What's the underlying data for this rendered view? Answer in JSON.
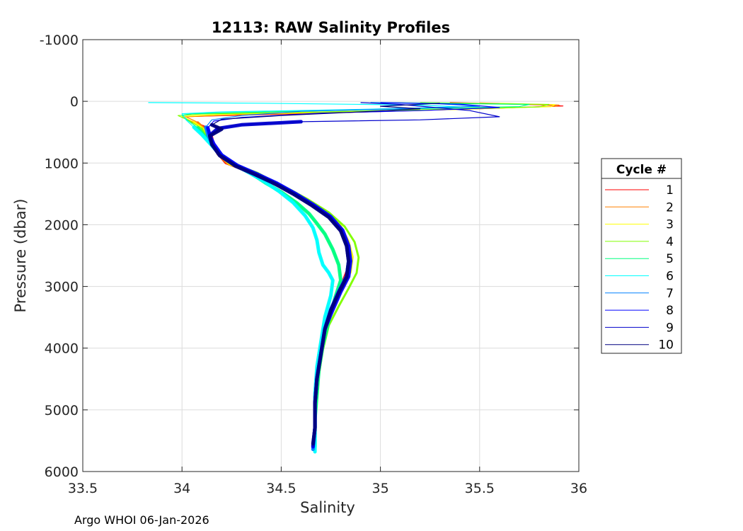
{
  "chart_data": {
    "type": "line",
    "title": "12113: RAW Salinity Profiles",
    "xlabel": "Salinity",
    "ylabel": "Pressure (dbar)",
    "xlim": [
      33.5,
      36
    ],
    "ylim": [
      -1000,
      6000
    ],
    "y_reversed": true,
    "grid": true,
    "xticks": [
      33.5,
      34,
      34.5,
      35,
      35.5,
      36
    ],
    "xtick_labels": [
      "33.5",
      "34",
      "34.5",
      "35",
      "35.5",
      "36"
    ],
    "yticks": [
      -1000,
      0,
      1000,
      2000,
      3000,
      4000,
      5000,
      6000
    ],
    "ytick_labels": [
      "-1000",
      "0",
      "1000",
      "2000",
      "3000",
      "4000",
      "5000",
      "6000"
    ],
    "legend": {
      "title": "Cycle #",
      "placement": "right"
    },
    "series": [
      {
        "name": "1",
        "color": "#ff0000",
        "points": [
          [
            35.35,
            20
          ],
          [
            35.85,
            60
          ],
          [
            35.92,
            75
          ],
          [
            35.5,
            120
          ],
          [
            35.0,
            165
          ],
          [
            34.4,
            215
          ],
          [
            34.0,
            250
          ],
          [
            34.05,
            330
          ],
          [
            34.12,
            420
          ],
          [
            34.15,
            560
          ],
          [
            34.16,
            700
          ],
          [
            34.18,
            850
          ],
          [
            34.22,
            1000
          ],
          [
            34.3,
            1100
          ],
          [
            34.4,
            1250
          ],
          [
            34.5,
            1400
          ],
          [
            34.6,
            1550
          ],
          [
            34.7,
            1750
          ],
          [
            34.78,
            2000
          ],
          [
            34.82,
            2250
          ],
          [
            34.84,
            2500
          ],
          [
            34.83,
            2750
          ],
          [
            34.8,
            3000
          ],
          [
            34.76,
            3300
          ],
          [
            34.73,
            3600
          ],
          [
            34.71,
            4000
          ],
          [
            34.69,
            4400
          ],
          [
            34.68,
            4800
          ],
          [
            34.67,
            5200
          ],
          [
            34.67,
            5550
          ]
        ]
      },
      {
        "name": "2",
        "color": "#ff8000",
        "points": [
          [
            35.5,
            25
          ],
          [
            35.9,
            60
          ],
          [
            35.88,
            80
          ],
          [
            35.45,
            125
          ],
          [
            34.9,
            170
          ],
          [
            34.3,
            215
          ],
          [
            34.02,
            250
          ],
          [
            34.08,
            340
          ],
          [
            34.12,
            460
          ],
          [
            34.14,
            580
          ],
          [
            34.16,
            720
          ],
          [
            34.18,
            860
          ],
          [
            34.23,
            1010
          ],
          [
            34.32,
            1120
          ],
          [
            34.42,
            1260
          ],
          [
            34.52,
            1410
          ],
          [
            34.62,
            1570
          ],
          [
            34.71,
            1770
          ],
          [
            34.79,
            2010
          ],
          [
            34.83,
            2260
          ],
          [
            34.85,
            2510
          ],
          [
            34.84,
            2760
          ],
          [
            34.8,
            3010
          ],
          [
            34.76,
            3300
          ],
          [
            34.73,
            3610
          ],
          [
            34.71,
            4010
          ],
          [
            34.69,
            4410
          ],
          [
            34.68,
            4810
          ],
          [
            34.67,
            5210
          ],
          [
            34.67,
            5560
          ]
        ]
      },
      {
        "name": "3",
        "color": "#ffff00",
        "points": [
          [
            35.6,
            30
          ],
          [
            35.88,
            55
          ],
          [
            35.86,
            85
          ],
          [
            35.4,
            130
          ],
          [
            34.8,
            175
          ],
          [
            34.2,
            210
          ],
          [
            34.0,
            245
          ],
          [
            34.06,
            335
          ],
          [
            34.11,
            450
          ],
          [
            34.13,
            570
          ],
          [
            34.16,
            710
          ],
          [
            34.19,
            870
          ],
          [
            34.24,
            1020
          ],
          [
            34.33,
            1130
          ],
          [
            34.43,
            1270
          ],
          [
            34.53,
            1420
          ],
          [
            34.63,
            1580
          ],
          [
            34.72,
            1780
          ],
          [
            34.8,
            2020
          ],
          [
            34.84,
            2270
          ],
          [
            34.86,
            2520
          ],
          [
            34.85,
            2770
          ],
          [
            34.81,
            3020
          ],
          [
            34.77,
            3310
          ],
          [
            34.73,
            3620
          ],
          [
            34.71,
            4020
          ],
          [
            34.69,
            4420
          ],
          [
            34.68,
            4820
          ],
          [
            34.67,
            5220
          ],
          [
            34.67,
            5570
          ]
        ]
      },
      {
        "name": "4",
        "color": "#80ff00",
        "points": [
          [
            35.2,
            20
          ],
          [
            35.85,
            50
          ],
          [
            35.8,
            90
          ],
          [
            35.3,
            130
          ],
          [
            34.7,
            170
          ],
          [
            34.1,
            205
          ],
          [
            33.98,
            230
          ],
          [
            34.04,
            320
          ],
          [
            34.1,
            440
          ],
          [
            34.12,
            560
          ],
          [
            34.15,
            700
          ],
          [
            34.2,
            880
          ],
          [
            34.28,
            1040
          ],
          [
            34.38,
            1160
          ],
          [
            34.46,
            1300
          ],
          [
            34.55,
            1440
          ],
          [
            34.64,
            1600
          ],
          [
            34.74,
            1800
          ],
          [
            34.82,
            2030
          ],
          [
            34.87,
            2280
          ],
          [
            34.89,
            2530
          ],
          [
            34.88,
            2780
          ],
          [
            34.84,
            3030
          ],
          [
            34.79,
            3320
          ],
          [
            34.74,
            3630
          ],
          [
            34.71,
            4030
          ],
          [
            34.69,
            4430
          ],
          [
            34.68,
            4830
          ],
          [
            34.67,
            5230
          ],
          [
            34.67,
            5580
          ]
        ]
      },
      {
        "name": "5",
        "color": "#00ff80",
        "points": [
          [
            35.0,
            20
          ],
          [
            35.75,
            50
          ],
          [
            35.7,
            85
          ],
          [
            35.1,
            125
          ],
          [
            34.5,
            165
          ],
          [
            34.05,
            200
          ],
          [
            34.0,
            225
          ],
          [
            34.03,
            310
          ],
          [
            34.08,
            430
          ],
          [
            34.11,
            550
          ],
          [
            34.15,
            690
          ],
          [
            34.2,
            870
          ],
          [
            34.27,
            1030
          ],
          [
            34.35,
            1170
          ],
          [
            34.42,
            1320
          ],
          [
            34.5,
            1470
          ],
          [
            34.58,
            1650
          ],
          [
            34.64,
            1820
          ],
          [
            34.68,
            1980
          ],
          [
            34.72,
            2150
          ],
          [
            34.76,
            2400
          ],
          [
            34.79,
            2650
          ],
          [
            34.8,
            2900
          ],
          [
            34.77,
            3200
          ],
          [
            34.74,
            3550
          ],
          [
            34.71,
            3950
          ],
          [
            34.69,
            4350
          ],
          [
            34.68,
            4750
          ],
          [
            34.67,
            5150
          ],
          [
            34.67,
            5600
          ]
        ]
      },
      {
        "name": "6",
        "color": "#00ffff",
        "points": [
          [
            33.83,
            20
          ],
          [
            34.4,
            30
          ],
          [
            35.2,
            60
          ],
          [
            35.4,
            90
          ],
          [
            34.9,
            130
          ],
          [
            34.2,
            170
          ],
          [
            34.0,
            200
          ],
          [
            34.02,
            300
          ],
          [
            34.06,
            420
          ],
          [
            34.1,
            540
          ],
          [
            34.14,
            680
          ],
          [
            34.19,
            860
          ],
          [
            34.26,
            1020
          ],
          [
            34.34,
            1160
          ],
          [
            34.42,
            1310
          ],
          [
            34.49,
            1460
          ],
          [
            34.56,
            1640
          ],
          [
            34.62,
            1850
          ],
          [
            34.66,
            2050
          ],
          [
            34.68,
            2250
          ],
          [
            34.69,
            2450
          ],
          [
            34.71,
            2650
          ],
          [
            34.74,
            2780
          ],
          [
            34.76,
            2900
          ],
          [
            34.75,
            3150
          ],
          [
            34.72,
            3500
          ],
          [
            34.7,
            3900
          ],
          [
            34.68,
            4300
          ],
          [
            34.67,
            4750
          ],
          [
            34.67,
            5200
          ],
          [
            34.67,
            5680
          ]
        ]
      },
      {
        "name": "7",
        "color": "#0080ff",
        "points": [
          [
            34.95,
            20
          ],
          [
            35.3,
            40
          ],
          [
            35.5,
            80
          ],
          [
            35.1,
            120
          ],
          [
            34.6,
            160
          ],
          [
            34.3,
            230
          ],
          [
            34.15,
            300
          ],
          [
            34.12,
            420
          ],
          [
            34.13,
            540
          ],
          [
            34.15,
            680
          ],
          [
            34.19,
            860
          ],
          [
            34.27,
            1030
          ],
          [
            34.37,
            1170
          ],
          [
            34.47,
            1320
          ],
          [
            34.56,
            1480
          ],
          [
            34.65,
            1660
          ],
          [
            34.74,
            1860
          ],
          [
            34.8,
            2080
          ],
          [
            34.83,
            2330
          ],
          [
            34.84,
            2580
          ],
          [
            34.83,
            2830
          ],
          [
            34.79,
            3080
          ],
          [
            34.75,
            3370
          ],
          [
            34.72,
            3680
          ],
          [
            34.7,
            4080
          ],
          [
            34.68,
            4480
          ],
          [
            34.67,
            4880
          ],
          [
            34.67,
            5280
          ],
          [
            34.66,
            5640
          ]
        ]
      },
      {
        "name": "8",
        "color": "#0000ff",
        "points": [
          [
            35.0,
            20
          ],
          [
            35.4,
            45
          ],
          [
            35.6,
            100
          ],
          [
            35.2,
            150
          ],
          [
            34.7,
            190
          ],
          [
            34.3,
            260
          ],
          [
            34.16,
            320
          ],
          [
            34.13,
            430
          ],
          [
            34.14,
            550
          ],
          [
            34.16,
            690
          ],
          [
            34.2,
            870
          ],
          [
            34.28,
            1040
          ],
          [
            34.38,
            1180
          ],
          [
            34.48,
            1330
          ],
          [
            34.57,
            1490
          ],
          [
            34.66,
            1670
          ],
          [
            34.75,
            1870
          ],
          [
            34.81,
            2090
          ],
          [
            34.84,
            2340
          ],
          [
            34.85,
            2590
          ],
          [
            34.84,
            2840
          ],
          [
            34.8,
            3090
          ],
          [
            34.76,
            3380
          ],
          [
            34.72,
            3690
          ],
          [
            34.7,
            4090
          ],
          [
            34.68,
            4490
          ],
          [
            34.67,
            4890
          ],
          [
            34.67,
            5290
          ],
          [
            34.66,
            5600
          ]
        ]
      },
      {
        "name": "9",
        "color": "#0000cc",
        "points": [
          [
            34.9,
            20
          ],
          [
            35.1,
            50
          ],
          [
            35.45,
            150
          ],
          [
            35.6,
            250
          ],
          [
            35.2,
            300
          ],
          [
            34.6,
            330
          ],
          [
            34.3,
            380
          ],
          [
            34.18,
            440
          ],
          [
            34.14,
            550
          ],
          [
            34.15,
            690
          ],
          [
            34.19,
            870
          ],
          [
            34.27,
            1040
          ],
          [
            34.37,
            1180
          ],
          [
            34.47,
            1330
          ],
          [
            34.56,
            1490
          ],
          [
            34.65,
            1670
          ],
          [
            34.74,
            1870
          ],
          [
            34.8,
            2090
          ],
          [
            34.83,
            2340
          ],
          [
            34.84,
            2590
          ],
          [
            34.83,
            2840
          ],
          [
            34.79,
            3090
          ],
          [
            34.75,
            3380
          ],
          [
            34.72,
            3690
          ],
          [
            34.7,
            4090
          ],
          [
            34.68,
            4490
          ],
          [
            34.67,
            4890
          ],
          [
            34.67,
            5290
          ],
          [
            34.66,
            5580
          ]
        ]
      },
      {
        "name": "10",
        "color": "#000080",
        "points": [
          [
            35.3,
            30
          ],
          [
            35.0,
            80
          ],
          [
            35.2,
            120
          ],
          [
            34.9,
            170
          ],
          [
            34.5,
            230
          ],
          [
            34.2,
            290
          ],
          [
            34.15,
            380
          ],
          [
            34.2,
            450
          ],
          [
            34.14,
            560
          ],
          [
            34.15,
            700
          ],
          [
            34.19,
            880
          ],
          [
            34.27,
            1050
          ],
          [
            34.37,
            1190
          ],
          [
            34.47,
            1340
          ],
          [
            34.56,
            1500
          ],
          [
            34.65,
            1680
          ],
          [
            34.74,
            1880
          ],
          [
            34.8,
            2100
          ],
          [
            34.83,
            2350
          ],
          [
            34.84,
            2600
          ],
          [
            34.83,
            2850
          ],
          [
            34.79,
            3100
          ],
          [
            34.75,
            3390
          ],
          [
            34.72,
            3700
          ],
          [
            34.7,
            4100
          ],
          [
            34.68,
            4500
          ],
          [
            34.67,
            4900
          ],
          [
            34.67,
            5300
          ],
          [
            34.66,
            5550
          ]
        ]
      }
    ]
  },
  "footer": {
    "text": "Argo WHOI 06-Jan-2026"
  }
}
